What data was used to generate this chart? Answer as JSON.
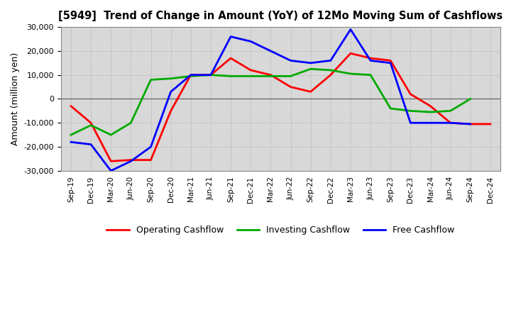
{
  "title": "[5949]  Trend of Change in Amount (YoY) of 12Mo Moving Sum of Cashflows",
  "ylabel": "Amount (million yen)",
  "background_color": "#ffffff",
  "plot_background": "#d8d8d8",
  "grid_color": "#aaaaaa",
  "ylim": [
    -30000,
    30000
  ],
  "yticks": [
    -30000,
    -20000,
    -10000,
    0,
    10000,
    20000,
    30000
  ],
  "x_labels": [
    "Sep-19",
    "Dec-19",
    "Mar-20",
    "Jun-20",
    "Sep-20",
    "Dec-20",
    "Mar-21",
    "Jun-21",
    "Sep-21",
    "Dec-21",
    "Mar-22",
    "Jun-22",
    "Sep-22",
    "Dec-22",
    "Mar-23",
    "Jun-23",
    "Sep-23",
    "Dec-23",
    "Mar-24",
    "Jun-24",
    "Sep-24",
    "Dec-24"
  ],
  "operating": [
    -3000,
    -10000,
    -26000,
    -25500,
    -25500,
    -5000,
    10000,
    10000,
    17000,
    12000,
    10000,
    5000,
    3000,
    10000,
    19000,
    17000,
    16000,
    2000,
    -3000,
    -10000,
    -10500,
    -10500
  ],
  "investing": [
    -15000,
    -11000,
    -15000,
    -10000,
    8000,
    8500,
    9500,
    10000,
    9500,
    9500,
    9500,
    9500,
    12500,
    12000,
    10500,
    10000,
    -4000,
    -5000,
    -5500,
    -5000,
    0,
    null
  ],
  "free": [
    -18000,
    -19000,
    -30000,
    -26000,
    -20000,
    3000,
    10000,
    10000,
    26000,
    24000,
    20000,
    16000,
    15000,
    16000,
    29000,
    16000,
    15000,
    -10000,
    -10000,
    -10000,
    -10500,
    null
  ],
  "operating_color": "#ff0000",
  "investing_color": "#00aa00",
  "free_color": "#0000ff",
  "line_width": 2.0
}
